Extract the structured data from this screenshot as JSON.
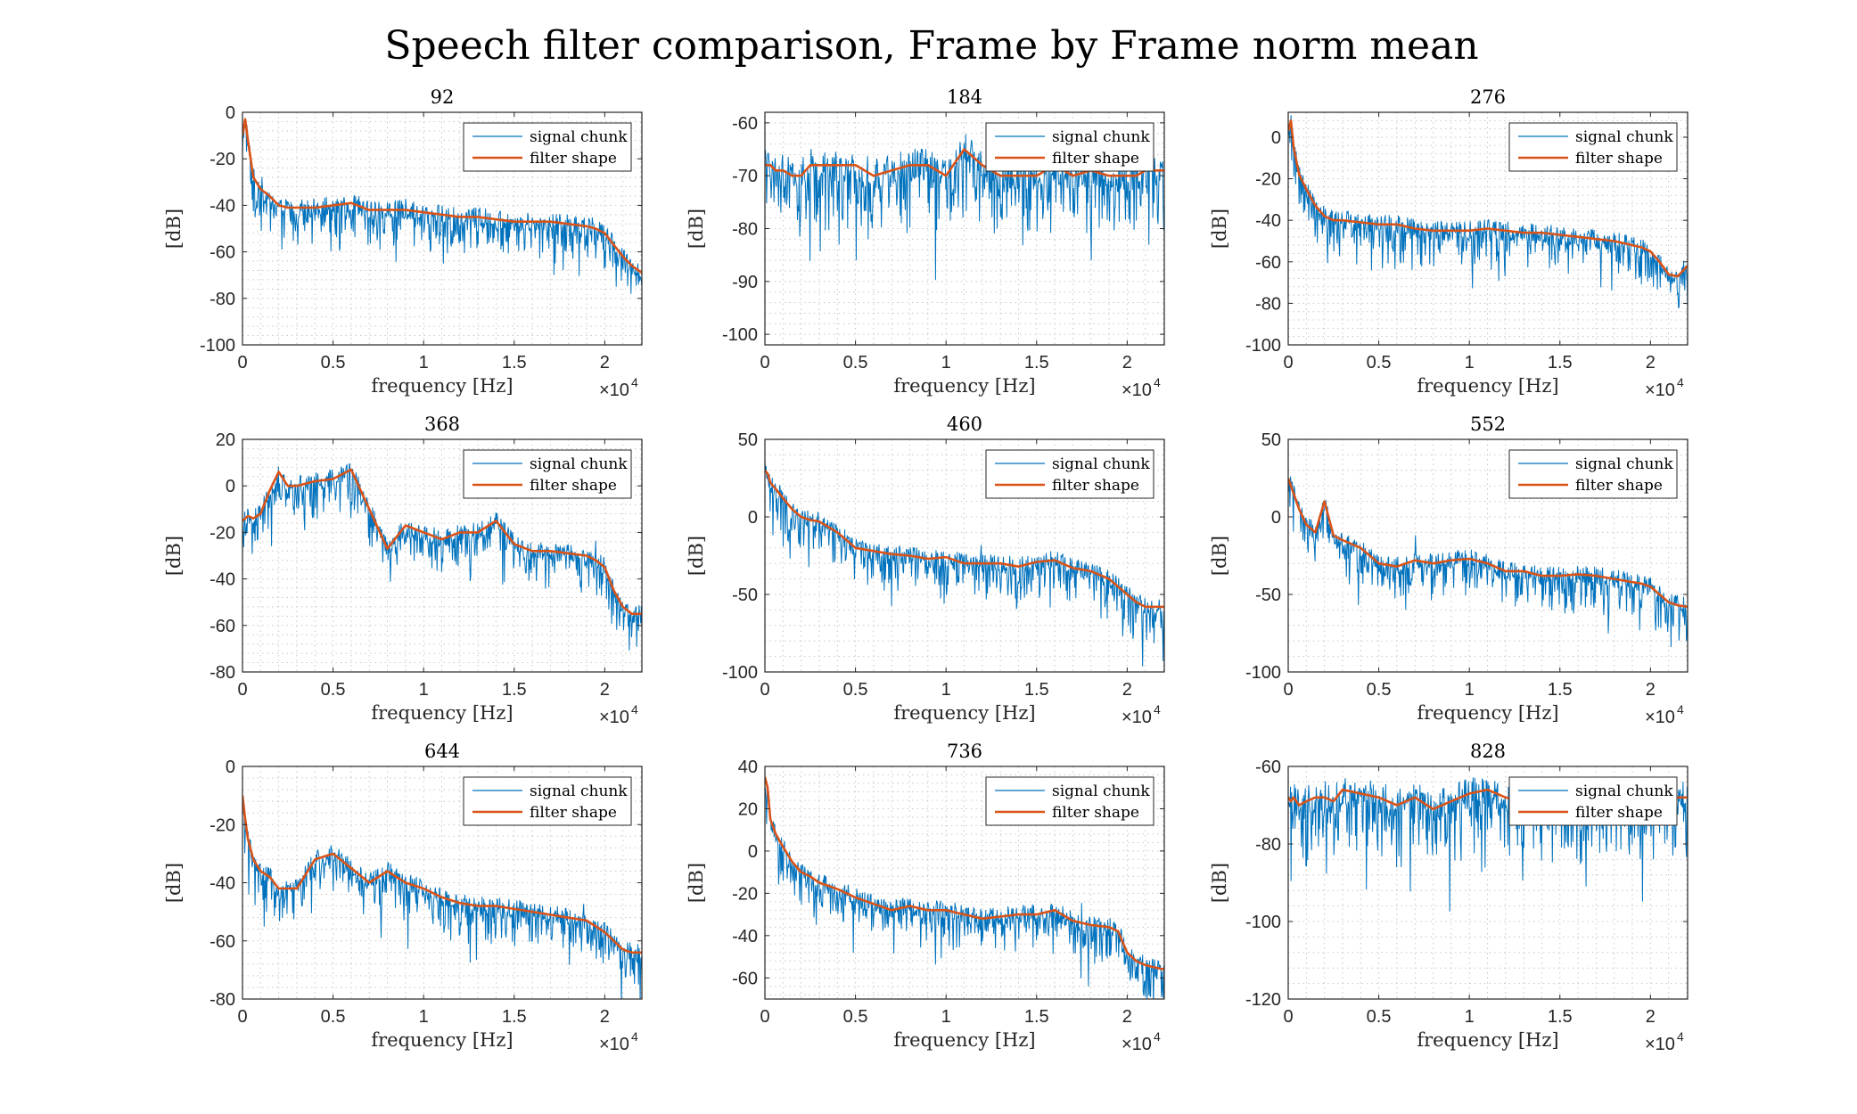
{
  "chart_data": {
    "type": "line",
    "title": "Speech filter comparison, Frame by Frame norm mean",
    "xlabel": "frequency [Hz]",
    "ylabel": "[dB]",
    "x_exponent_label": "×10",
    "x_exponent_power": "4",
    "x_tick_values": [
      0,
      5000,
      10000,
      15000,
      20000
    ],
    "x_tick_labels": [
      "0",
      "0.5",
      "1",
      "1.5",
      "2"
    ],
    "xlim": [
      0,
      22050
    ],
    "grid": true,
    "grid_style": "dotted minor",
    "legend_position": "top-right",
    "colors": {
      "signal": "#0072BD",
      "filter": "#D95319"
    },
    "legend": [
      "signal chunk",
      "filter shape"
    ],
    "x": [
      0,
      150,
      300,
      600,
      1000,
      1500,
      2000,
      2500,
      3000,
      4000,
      5000,
      6000,
      7000,
      8000,
      9000,
      10000,
      11000,
      12000,
      13000,
      14000,
      15000,
      16000,
      17000,
      18000,
      19000,
      19500,
      20000,
      20500,
      21000,
      21500,
      22050
    ],
    "panels": [
      {
        "title": "92",
        "ylim": [
          -100,
          0
        ],
        "yticks": [
          0,
          -20,
          -40,
          -60,
          -80,
          -100
        ],
        "series": [
          {
            "name": "signal chunk"
          },
          {
            "name": "filter shape",
            "values": [
              -10,
              -3,
              -12,
              -28,
              -33,
              -36,
              -40,
              -41,
              -41,
              -41,
              -40,
              -39,
              -42,
              -42,
              -42,
              -43,
              -44,
              -45,
              -45,
              -46,
              -47,
              -47,
              -47,
              -48,
              -49,
              -50,
              -52,
              -57,
              -62,
              -66,
              -69
            ]
          }
        ]
      },
      {
        "title": "184",
        "ylim": [
          -102,
          -58
        ],
        "yticks": [
          -60,
          -70,
          -80,
          -90,
          -100
        ],
        "series": [
          {
            "name": "signal chunk"
          },
          {
            "name": "filter shape",
            "values": [
              -68,
              -68,
              -68,
              -69,
              -69,
              -70,
              -70,
              -68,
              -68,
              -68,
              -68,
              -70,
              -69,
              -68,
              -68,
              -70,
              -65,
              -68,
              -70,
              -70,
              -70,
              -68,
              -70,
              -69,
              -70,
              -70,
              -70,
              -70,
              -69,
              -69,
              -69
            ]
          }
        ]
      },
      {
        "title": "276",
        "ylim": [
          -100,
          12
        ],
        "yticks": [
          0,
          -20,
          -40,
          -60,
          -80,
          -100
        ],
        "series": [
          {
            "name": "signal chunk"
          },
          {
            "name": "filter shape",
            "values": [
              3,
              8,
              -5,
              -18,
              -25,
              -33,
              -38,
              -40,
              -40,
              -41,
              -42,
              -42,
              -44,
              -45,
              -45,
              -45,
              -44,
              -45,
              -46,
              -46,
              -47,
              -48,
              -49,
              -50,
              -52,
              -53,
              -55,
              -60,
              -66,
              -67,
              -62
            ]
          }
        ]
      },
      {
        "title": "368",
        "ylim": [
          -80,
          20
        ],
        "yticks": [
          20,
          0,
          -20,
          -40,
          -60,
          -80
        ],
        "series": [
          {
            "name": "signal chunk"
          },
          {
            "name": "filter shape",
            "values": [
              -15,
              -14,
              -13,
              -14,
              -12,
              -2,
              6,
              0,
              0,
              2,
              3,
              7,
              -10,
              -27,
              -17,
              -20,
              -23,
              -20,
              -20,
              -15,
              -25,
              -28,
              -28,
              -29,
              -30,
              -32,
              -35,
              -45,
              -52,
              -55,
              -55
            ]
          }
        ]
      },
      {
        "title": "460",
        "ylim": [
          -100,
          50
        ],
        "yticks": [
          50,
          0,
          -50,
          -100
        ],
        "series": [
          {
            "name": "signal chunk"
          },
          {
            "name": "filter shape",
            "values": [
              30,
              28,
              22,
              18,
              12,
              5,
              0,
              -2,
              -3,
              -10,
              -20,
              -22,
              -24,
              -25,
              -27,
              -26,
              -30,
              -30,
              -30,
              -32,
              -29,
              -28,
              -33,
              -35,
              -40,
              -45,
              -50,
              -55,
              -58,
              -58,
              -58
            ]
          }
        ]
      },
      {
        "title": "552",
        "ylim": [
          -100,
          50
        ],
        "yticks": [
          50,
          0,
          -50,
          -100
        ],
        "series": [
          {
            "name": "signal chunk"
          },
          {
            "name": "filter shape",
            "values": [
              25,
              20,
              15,
              5,
              -5,
              -10,
              10,
              -12,
              -15,
              -20,
              -30,
              -32,
              -28,
              -30,
              -28,
              -27,
              -30,
              -35,
              -35,
              -38,
              -38,
              -37,
              -38,
              -40,
              -42,
              -43,
              -45,
              -50,
              -55,
              -57,
              -58
            ]
          }
        ]
      },
      {
        "title": "644",
        "ylim": [
          -80,
          0
        ],
        "yticks": [
          0,
          -20,
          -40,
          -60,
          -80
        ],
        "series": [
          {
            "name": "signal chunk"
          },
          {
            "name": "filter shape",
            "values": [
              -10,
              -18,
              -25,
              -32,
              -36,
              -38,
              -42,
              -42,
              -42,
              -32,
              -30,
              -35,
              -40,
              -36,
              -40,
              -42,
              -45,
              -47,
              -48,
              -48,
              -49,
              -50,
              -51,
              -52,
              -53,
              -55,
              -57,
              -60,
              -63,
              -64,
              -64
            ]
          }
        ]
      },
      {
        "title": "736",
        "ylim": [
          -70,
          40
        ],
        "yticks": [
          40,
          20,
          0,
          -20,
          -40,
          -60
        ],
        "series": [
          {
            "name": "signal chunk"
          },
          {
            "name": "filter shape",
            "values": [
              35,
              30,
              15,
              8,
              2,
              -5,
              -10,
              -12,
              -15,
              -18,
              -22,
              -25,
              -28,
              -26,
              -28,
              -28,
              -30,
              -32,
              -31,
              -30,
              -30,
              -28,
              -33,
              -35,
              -36,
              -38,
              -48,
              -52,
              -54,
              -55,
              -56
            ]
          }
        ]
      },
      {
        "title": "828",
        "ylim": [
          -120,
          -60
        ],
        "yticks": [
          -60,
          -80,
          -100,
          -120
        ],
        "series": [
          {
            "name": "signal chunk"
          },
          {
            "name": "filter shape",
            "values": [
              -68,
              -69,
              -68,
              -70,
              -69,
              -68,
              -68,
              -69,
              -66,
              -67,
              -68,
              -70,
              -68,
              -71,
              -69,
              -67,
              -66,
              -68,
              -69,
              -70,
              -69,
              -70,
              -68,
              -69,
              -68,
              -69,
              -70,
              -70,
              -69,
              -68,
              -68
            ]
          }
        ]
      }
    ]
  }
}
